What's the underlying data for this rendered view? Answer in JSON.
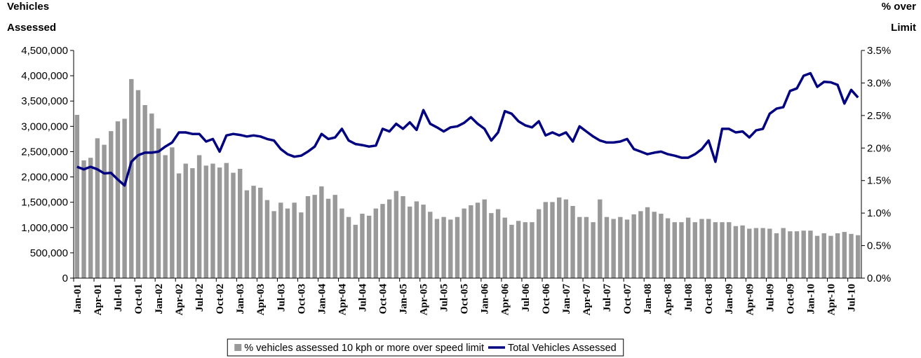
{
  "chart_data": {
    "type": "combo",
    "ylabel_lines": [
      "Vehicles",
      "Assessed"
    ],
    "y2label_lines": [
      "% over",
      "Limit"
    ],
    "categories": [
      "Jan-01",
      null,
      null,
      "Apr-01",
      null,
      null,
      "Jul-01",
      null,
      null,
      "Oct-01",
      null,
      null,
      "Jan-02",
      null,
      null,
      "Apr-02",
      null,
      null,
      "Jul-02",
      null,
      null,
      "Oct-02",
      null,
      null,
      "Jan-03",
      null,
      null,
      "Apr-03",
      null,
      null,
      "Jul-03",
      null,
      null,
      "Oct-03",
      null,
      null,
      "Jan-04",
      null,
      null,
      "Apr-04",
      null,
      null,
      "Jul-04",
      null,
      null,
      "Oct-04",
      null,
      null,
      "Jan-05",
      null,
      null,
      "Apr-05",
      null,
      null,
      "Jul-05",
      null,
      null,
      "Oct-05",
      null,
      null,
      "Jan-06",
      null,
      null,
      "Apr-06",
      null,
      null,
      "Jul-06",
      null,
      null,
      "Oct-06",
      null,
      null,
      "Jan-07",
      null,
      null,
      "Apr-07",
      null,
      null,
      "Jul-07",
      null,
      null,
      "Oct-07",
      null,
      null,
      "Jan-08",
      null,
      null,
      "Apr-08",
      null,
      null,
      "Jul-08",
      null,
      null,
      "Oct-08",
      null,
      null,
      "Jan-09",
      null,
      null,
      "Apr-09",
      null,
      null,
      "Jul-09",
      null,
      null,
      "Oct-09",
      null,
      null,
      "Jan-10",
      null,
      null,
      "Apr-10",
      null,
      null,
      "Jul-10",
      null
    ],
    "series": [
      {
        "name": "% vehicles assessed 10 kph or more over speed limit",
        "type": "bar",
        "axis": "y2",
        "color": "#999999",
        "values": [
          2.51,
          1.81,
          1.85,
          2.15,
          2.05,
          2.26,
          2.41,
          2.45,
          3.06,
          2.89,
          2.66,
          2.53,
          2.3,
          1.89,
          2.01,
          1.61,
          1.76,
          1.69,
          1.89,
          1.73,
          1.76,
          1.7,
          1.77,
          1.62,
          1.68,
          1.35,
          1.42,
          1.39,
          1.2,
          1.03,
          1.16,
          1.07,
          1.16,
          1.01,
          1.26,
          1.28,
          1.41,
          1.22,
          1.28,
          1.07,
          0.94,
          0.82,
          0.99,
          0.96,
          1.07,
          1.14,
          1.21,
          1.34,
          1.26,
          1.1,
          1.18,
          1.13,
          1.02,
          0.91,
          0.94,
          0.9,
          0.94,
          1.07,
          1.12,
          1.16,
          1.21,
          1.0,
          1.06,
          0.93,
          0.82,
          0.88,
          0.86,
          0.86,
          1.06,
          1.17,
          1.17,
          1.24,
          1.21,
          1.11,
          0.94,
          0.94,
          0.86,
          1.21,
          0.94,
          0.91,
          0.94,
          0.9,
          0.98,
          1.03,
          1.09,
          1.02,
          0.99,
          0.92,
          0.86,
          0.86,
          0.93,
          0.86,
          0.91,
          0.91,
          0.86,
          0.86,
          0.86,
          0.8,
          0.81,
          0.76,
          0.77,
          0.77,
          0.76,
          0.69,
          0.77,
          0.72,
          0.72,
          0.73,
          0.73,
          0.65,
          0.69,
          0.65,
          0.69,
          0.71,
          0.68,
          0.66
        ]
      },
      {
        "name": "Total Vehicles Assessed",
        "type": "line",
        "color": "#000080",
        "values": [
          2200000,
          2150000,
          2200000,
          2150000,
          2070000,
          2080000,
          1950000,
          1830000,
          2300000,
          2430000,
          2480000,
          2480000,
          2500000,
          2600000,
          2680000,
          2880000,
          2880000,
          2850000,
          2850000,
          2700000,
          2750000,
          2500000,
          2820000,
          2850000,
          2830000,
          2800000,
          2820000,
          2800000,
          2750000,
          2720000,
          2550000,
          2450000,
          2400000,
          2420000,
          2500000,
          2600000,
          2850000,
          2750000,
          2780000,
          2950000,
          2720000,
          2650000,
          2630000,
          2600000,
          2620000,
          2950000,
          2900000,
          3050000,
          2950000,
          3080000,
          2930000,
          3320000,
          3050000,
          2980000,
          2900000,
          2980000,
          3000000,
          3070000,
          3180000,
          3050000,
          2950000,
          2720000,
          2880000,
          3300000,
          3250000,
          3100000,
          3020000,
          2980000,
          3100000,
          2820000,
          2880000,
          2820000,
          2880000,
          2700000,
          3000000,
          2900000,
          2800000,
          2720000,
          2680000,
          2680000,
          2700000,
          2750000,
          2550000,
          2500000,
          2450000,
          2480000,
          2500000,
          2450000,
          2420000,
          2380000,
          2380000,
          2450000,
          2550000,
          2720000,
          2300000,
          2950000,
          2950000,
          2880000,
          2900000,
          2780000,
          2920000,
          2950000,
          3250000,
          3350000,
          3380000,
          3700000,
          3750000,
          4000000,
          4050000,
          3780000,
          3880000,
          3870000,
          3820000,
          3450000,
          3720000,
          3570000
        ]
      }
    ],
    "ylim": [
      0,
      4500000
    ],
    "yticks": [
      0,
      {
        "value": 500000,
        "label": "500,000"
      },
      {
        "value": 1000000,
        "label": "1,000,000"
      },
      {
        "value": 1500000,
        "label": "1,500,000"
      },
      {
        "value": 2000000,
        "label": "2,000,000"
      },
      {
        "value": 2500000,
        "label": "2,500,000"
      },
      {
        "value": 3000000,
        "label": "3,000,000"
      },
      {
        "value": 3500000,
        "label": "3,500,000"
      },
      {
        "value": 4000000,
        "label": "4,000,000"
      },
      {
        "value": 4500000,
        "label": "4,500,000"
      }
    ],
    "y2lim": [
      0,
      3.5
    ],
    "y2ticks": [
      {
        "value": 0,
        "label": "0.0%"
      },
      {
        "value": 0.5,
        "label": "0.5%"
      },
      {
        "value": 1,
        "label": "1.0%"
      },
      {
        "value": 1.5,
        "label": "1.5%"
      },
      {
        "value": 2,
        "label": "2.0%"
      },
      {
        "value": 2.5,
        "label": "2.5%"
      },
      {
        "value": 3,
        "label": "3.0%"
      },
      {
        "value": 3.5,
        "label": "3.5%"
      }
    ],
    "grid": false,
    "legend": "bottom"
  }
}
